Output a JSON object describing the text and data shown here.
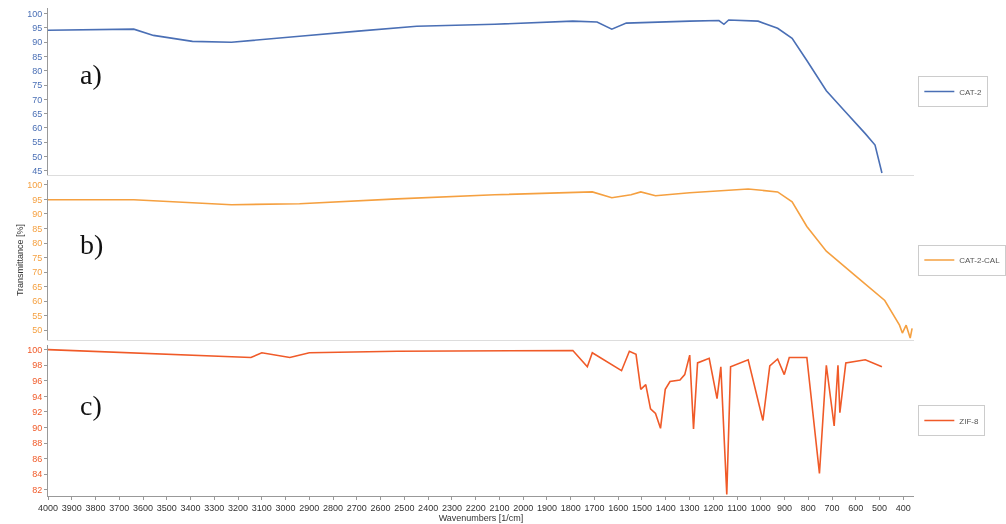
{
  "chart_data": [
    {
      "type": "line",
      "annotations": [
        "a)"
      ],
      "tick_labels": "y",
      "xlim": [
        4000,
        355
      ],
      "xticks": [
        4000,
        3900,
        3800,
        3700,
        3600,
        3500,
        3400,
        3300,
        3200,
        3100,
        3000,
        2900,
        2800,
        2700,
        2600,
        2500,
        2400,
        2300,
        2200,
        2100,
        2000,
        1900,
        1800,
        1700,
        1600,
        1500,
        1400,
        1300,
        1200,
        1100,
        1000,
        900,
        800,
        700,
        600,
        500,
        400
      ],
      "ylim": [
        43.5,
        102
      ],
      "yticks": [
        45,
        50,
        55,
        60,
        65,
        70,
        75,
        80,
        85,
        90,
        95,
        100
      ],
      "grid": false,
      "legend": "right",
      "line_style": "solid",
      "marker": "none",
      "series": [
        {
          "name": "CAT-2",
          "color": "#4a6fb5",
          "x": [
            4000,
            3639,
            3556,
            3392,
            3228,
            2941,
            2695,
            2448,
            2120,
            1791,
            1689,
            1627,
            1566,
            1299,
            1176,
            1155,
            1135,
            1011,
            929,
            868,
            806,
            724,
            642,
            560,
            519,
            490
          ],
          "values": [
            94.2,
            94.6,
            92.4,
            90.3,
            90.0,
            92.1,
            93.9,
            95.6,
            96.3,
            97.4,
            97.1,
            94.6,
            96.7,
            97.4,
            97.6,
            96.3,
            97.8,
            97.4,
            94.9,
            91.4,
            83.6,
            73.0,
            65.5,
            58.0,
            54.0,
            44.2
          ]
        }
      ]
    },
    {
      "type": "line",
      "annotations": [
        "b)"
      ],
      "ylabel": "Transmittance [%]",
      "tick_labels": "y",
      "xlim": [
        4000,
        355
      ],
      "xticks": [
        4000,
        3900,
        3800,
        3700,
        3600,
        3500,
        3400,
        3300,
        3200,
        3100,
        3000,
        2900,
        2800,
        2700,
        2600,
        2500,
        2400,
        2300,
        2200,
        2100,
        2000,
        1900,
        1800,
        1700,
        1600,
        1500,
        1400,
        1300,
        1200,
        1100,
        1000,
        900,
        800,
        700,
        600,
        500,
        400
      ],
      "ylim": [
        46.6,
        101.7
      ],
      "yticks": [
        50,
        55,
        60,
        65,
        70,
        75,
        80,
        85,
        90,
        95,
        100
      ],
      "grid": false,
      "legend": "right",
      "line_style": "solid",
      "marker": "none",
      "series": [
        {
          "name": "CAT-2-CAL",
          "color": "#f5a040",
          "x": [
            4000,
            3639,
            3228,
            2941,
            2530,
            2120,
            1709,
            1627,
            1546,
            1505,
            1443,
            1299,
            1053,
            929,
            868,
            806,
            724,
            601,
            478,
            416,
            404,
            388,
            371,
            363
          ],
          "values": [
            94.9,
            94.9,
            93.2,
            93.5,
            95.2,
            96.6,
            97.6,
            95.6,
            96.6,
            97.6,
            96.3,
            97.3,
            98.6,
            97.6,
            94.2,
            85.7,
            77.2,
            68.7,
            60.2,
            51.7,
            49.0,
            51.7,
            47.3,
            50.6
          ]
        }
      ]
    },
    {
      "type": "line",
      "annotations": [
        "c)"
      ],
      "xlabel": "Wavenumbers [1/cm]",
      "xlim": [
        4000,
        355
      ],
      "xticks": [
        4000,
        3900,
        3800,
        3700,
        3600,
        3500,
        3400,
        3300,
        3200,
        3100,
        3000,
        2900,
        2800,
        2700,
        2600,
        2500,
        2400,
        2300,
        2200,
        2100,
        2000,
        1900,
        1800,
        1700,
        1600,
        1500,
        1400,
        1300,
        1200,
        1100,
        1000,
        900,
        800,
        700,
        600,
        500,
        400
      ],
      "ylim": [
        81.2,
        100.6
      ],
      "yticks": [
        82,
        84,
        86,
        88,
        90,
        92,
        94,
        96,
        98,
        100
      ],
      "grid": false,
      "legend": "right",
      "line_style": "solid",
      "marker": "none",
      "series": [
        {
          "name": "ZIF-8",
          "color": "#f05a28",
          "x": [
            4000,
            3146,
            3100,
            2982,
            2900,
            2530,
            1791,
            1730,
            1709,
            1586,
            1553,
            1525,
            1505,
            1484,
            1464,
            1443,
            1422,
            1402,
            1382,
            1340,
            1320,
            1299,
            1283,
            1266,
            1217,
            1184,
            1168,
            1143,
            1127,
            1053,
            991,
            962,
            929,
            901,
            880,
            806,
            753,
            724,
            691,
            675,
            667,
            642,
            560,
            490
          ],
          "values": [
            100.0,
            99.0,
            99.6,
            99.0,
            99.6,
            99.8,
            99.9,
            97.8,
            99.6,
            97.3,
            99.8,
            99.4,
            94.9,
            95.5,
            92.4,
            91.8,
            89.9,
            94.9,
            95.9,
            96.1,
            96.8,
            99.3,
            89.8,
            98.3,
            98.9,
            93.7,
            97.8,
            81.4,
            97.8,
            98.7,
            90.9,
            97.9,
            98.8,
            96.8,
            99.0,
            99.0,
            84.1,
            98.0,
            90.2,
            98.0,
            91.9,
            98.3,
            98.7,
            97.8
          ]
        }
      ]
    }
  ]
}
